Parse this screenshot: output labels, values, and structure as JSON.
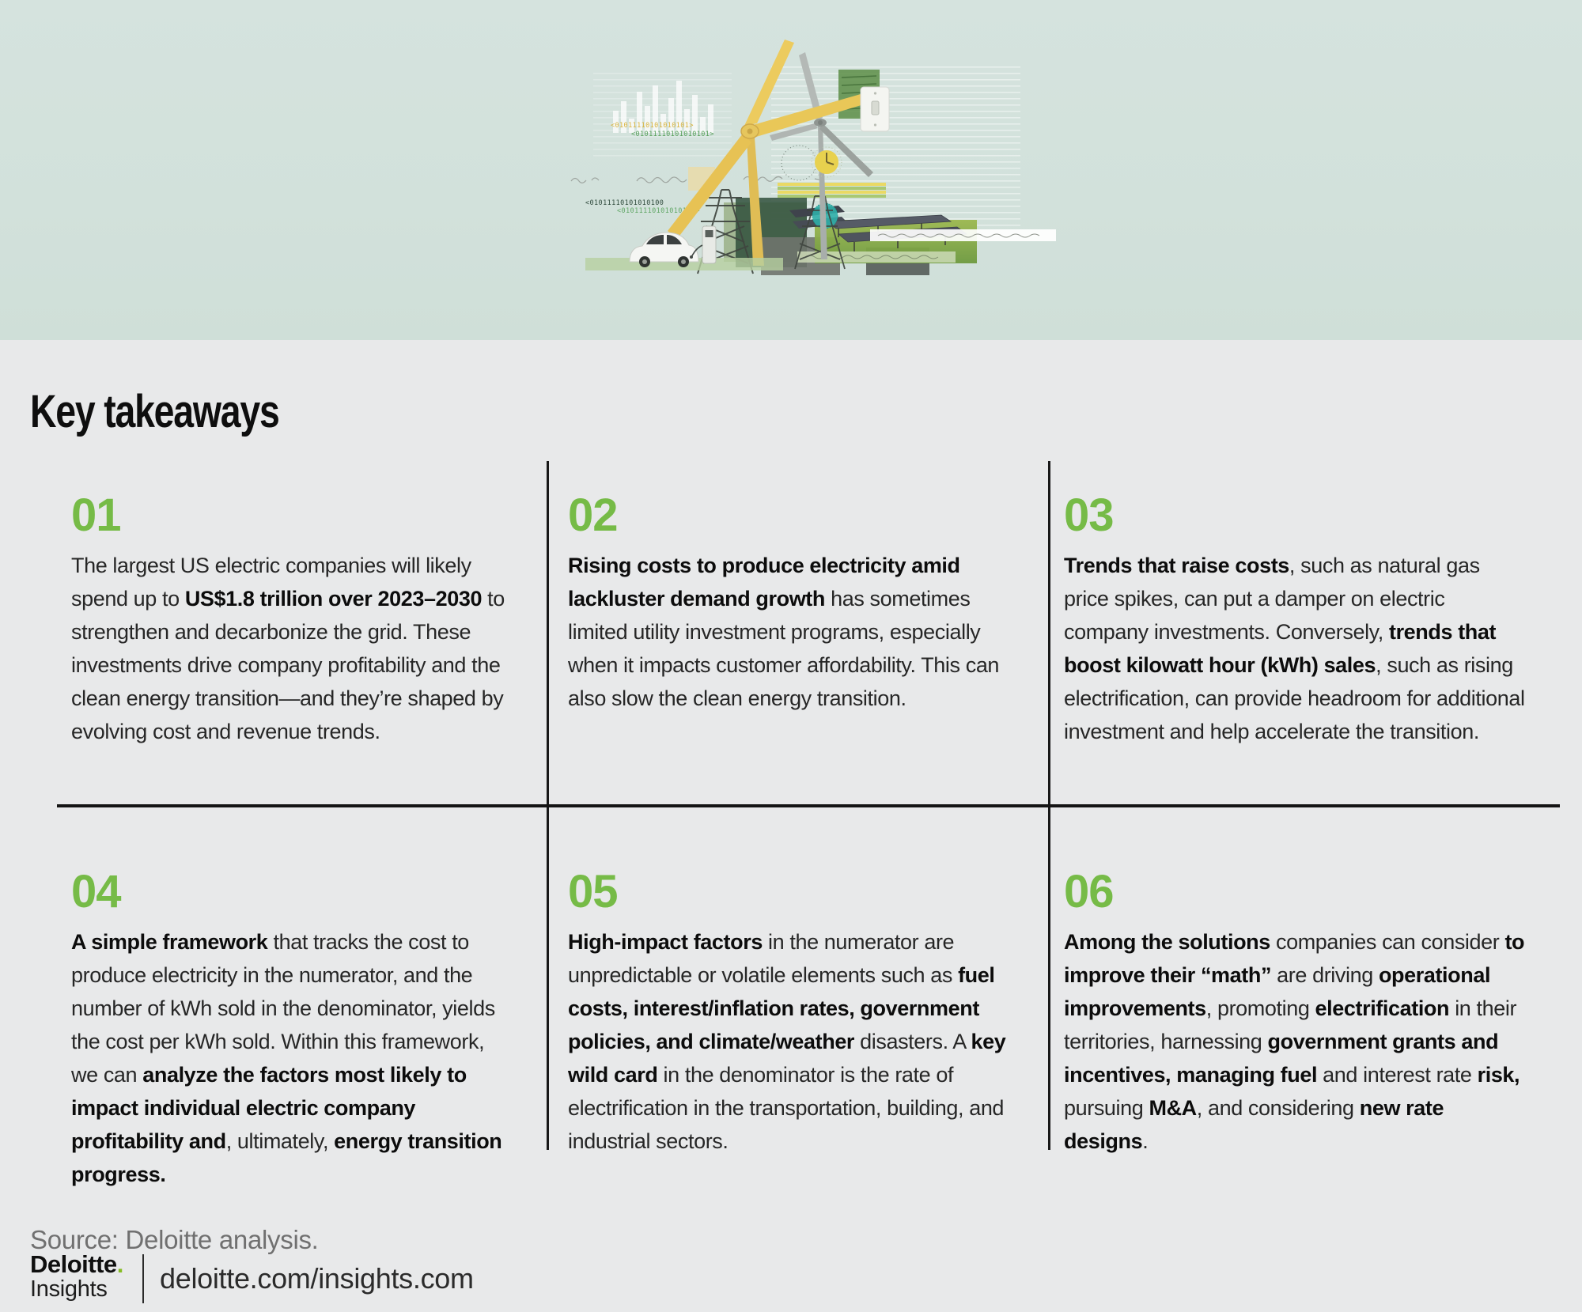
{
  "page": {
    "title": "Key takeaways",
    "source": "Source: Deloitte analysis."
  },
  "colors": {
    "accent_green": "#76bb47",
    "deloitte_dot_green": "#86bc25",
    "banner_bg": "#d2e1db",
    "body_bg": "#e8e9ea",
    "divider_black": "#141414"
  },
  "illustration": {
    "name": "clean-energy-collage",
    "binary_top_yellow": "<01011110101010101>",
    "binary_top_green": "<01011110101010101>",
    "binary_mid_dark": "<01011110101010100",
    "binary_mid_green": "<01011110101010101>"
  },
  "takeaways": [
    {
      "number": "01",
      "runs": [
        {
          "t": "The largest US electric companies will likely spend up to ",
          "b": false
        },
        {
          "t": "US$1.8 trillion over 2023–2030",
          "b": true
        },
        {
          "t": " to strengthen and decarbonize the grid. These investments drive company profitability and the clean energy transition—and they’re shaped by evolving cost and revenue trends.",
          "b": false
        }
      ]
    },
    {
      "number": "02",
      "runs": [
        {
          "t": "Rising costs to produce electricity amid lackluster demand growth",
          "b": true
        },
        {
          "t": " has sometimes limited utility investment programs, especially when it impacts customer affordability. This can also slow the clean energy transition.",
          "b": false
        }
      ]
    },
    {
      "number": "03",
      "runs": [
        {
          "t": "Trends that raise costs",
          "b": true
        },
        {
          "t": ", such as natural gas price spikes, can put a damper on electric company investments. Conversely, ",
          "b": false
        },
        {
          "t": "trends that boost kilowatt hour (kWh) sales",
          "b": true
        },
        {
          "t": ", such as rising electrification, can provide headroom for additional investment and help accelerate the transition.",
          "b": false
        }
      ]
    },
    {
      "number": "04",
      "runs": [
        {
          "t": "A simple framework",
          "b": true
        },
        {
          "t": " that tracks the cost to produce electricity in the numerator, and the number of kWh sold in the denominator, yields the cost per kWh sold. Within this framework, we can ",
          "b": false
        },
        {
          "t": "analyze the factors most likely to impact individual electric company profitability and",
          "b": true
        },
        {
          "t": ", ultimately, ",
          "b": false
        },
        {
          "t": "energy transition progress.",
          "b": true
        }
      ]
    },
    {
      "number": "05",
      "runs": [
        {
          "t": "High-impact factors",
          "b": true
        },
        {
          "t": " in the numerator are unpredictable or volatile elements such as ",
          "b": false
        },
        {
          "t": "fuel costs, interest/inflation rates, government policies, and climate/weather",
          "b": true
        },
        {
          "t": " disasters. A ",
          "b": false
        },
        {
          "t": "key wild card",
          "b": true
        },
        {
          "t": " in the denominator is the rate of electrification in the transportation, building, and industrial sectors.",
          "b": false
        }
      ]
    },
    {
      "number": "06",
      "runs": [
        {
          "t": "Among the solutions",
          "b": true
        },
        {
          "t": " companies can consider ",
          "b": false
        },
        {
          "t": "to improve their “math”",
          "b": true
        },
        {
          "t": " are driving ",
          "b": false
        },
        {
          "t": "operational improvements",
          "b": true
        },
        {
          "t": ", promoting ",
          "b": false
        },
        {
          "t": "electrification",
          "b": true
        },
        {
          "t": " in their territories, harnessing ",
          "b": false
        },
        {
          "t": "government grants and incentives, managing fuel",
          "b": true
        },
        {
          "t": " and interest rate ",
          "b": false
        },
        {
          "t": "risk,",
          "b": true
        },
        {
          "t": " pursuing ",
          "b": false
        },
        {
          "t": "M&A",
          "b": true
        },
        {
          "t": ", and  considering ",
          "b": false
        },
        {
          "t": "new rate designs",
          "b": true
        },
        {
          "t": ".",
          "b": false
        }
      ]
    }
  ],
  "footer": {
    "brand": "Deloitte",
    "brand_dot": ".",
    "brand_sub": "Insights",
    "url": "deloitte.com/insights.com"
  }
}
